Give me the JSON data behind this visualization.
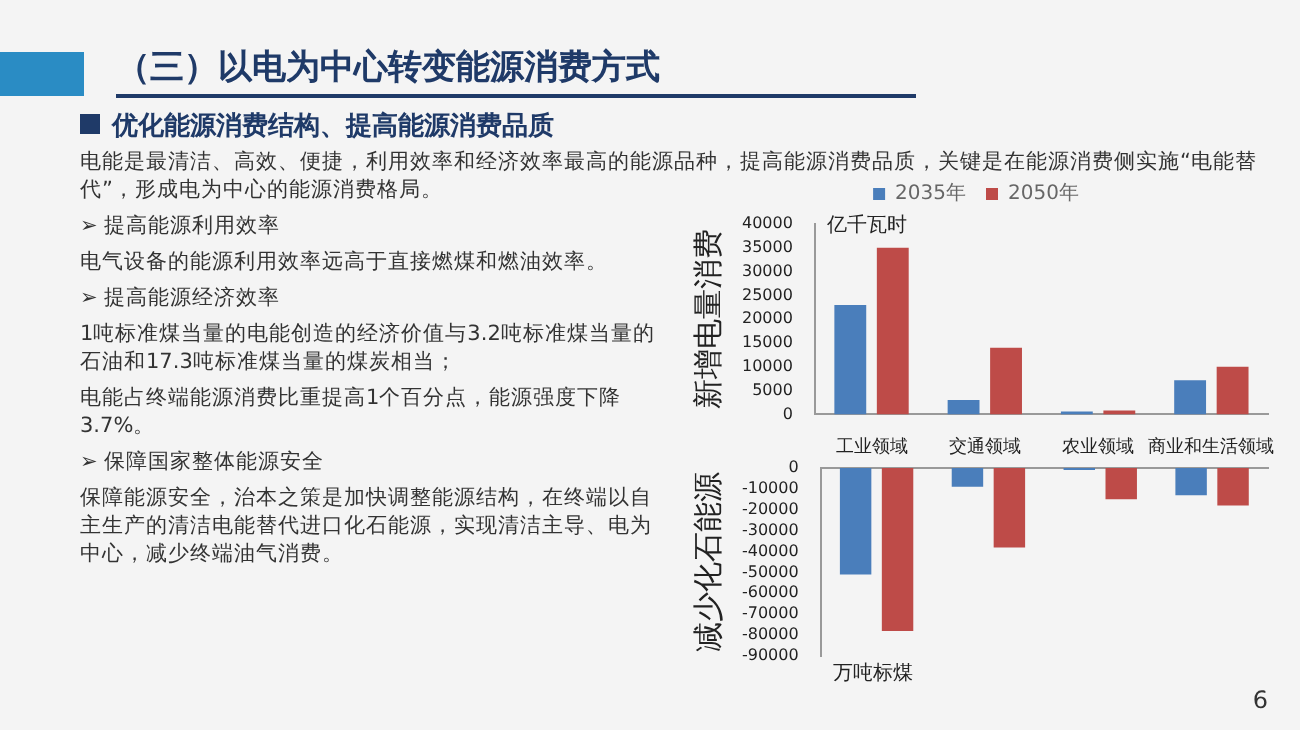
{
  "chart_data": [
    {
      "type": "other",
      "title": "（三）以电为中心转变能源消费方式",
      "subtitle": "优化能源消费结构、提高能源消费品质",
      "annotations": [
        "电能是最清洁、高效、便捷，利用效率和经济效率最高的能源品种，提高能源消费品质，关键是在能源消费侧实施“电能替代”，形成电为中心的能源消费格局。",
        "➢ 提高能源利用效率",
        "电气设备的能源利用效率远高于直接燃煤和燃油效率。",
        "➢ 提高能源经济效率",
        "1吨标准煤当量的电能创造的经济价值与3.2吨标准煤当量的石油和17.3吨标准煤当量的煤炭相当；",
        "电能占终端能源消费比重提高1个百分点，能源强度下降3.7%。",
        "➢ 保障国家整体能源安全",
        "保障能源安全，治本之策是加快调整能源结构，在终端以自主生产的清洁电能替代进口化石能源，实现清洁主导、电为中心，减少终端油气消费。",
        "6"
      ]
    },
    {
      "type": "bar",
      "ylabel": "新增电量消费",
      "annotations": [
        "亿千瓦时"
      ],
      "legend": "top",
      "categories": [
        "工业领域",
        "交通领域",
        "农业领域",
        "商业和生活领域"
      ],
      "series": [
        {
          "name": "2035年",
          "color": "#4a7ebb",
          "values": [
            23000,
            3000,
            600,
            7200
          ]
        },
        {
          "name": "2050年",
          "color": "#be4b48",
          "values": [
            35000,
            14000,
            800,
            10000
          ]
        }
      ],
      "ylim": [
        0,
        40000
      ],
      "yticks": [
        0,
        5000,
        10000,
        15000,
        20000,
        25000,
        30000,
        35000,
        40000
      ]
    },
    {
      "type": "bar",
      "ylabel": "减少化石能源",
      "annotations": [
        "万吨标煤"
      ],
      "tick_labels": "y",
      "categories": [
        null,
        null,
        null,
        null
      ],
      "series": [
        {
          "color": "#4a7ebb",
          "values": [
            -51000,
            -9000,
            -1000,
            -13000
          ]
        },
        {
          "color": "#be4b48",
          "values": [
            -78000,
            -38000,
            -15000,
            -18000
          ]
        }
      ],
      "ylim": [
        -90000,
        0
      ],
      "yticks": [
        -90000,
        -80000,
        -70000,
        -60000,
        -50000,
        -40000,
        -30000,
        -20000,
        -10000,
        0
      ]
    }
  ]
}
